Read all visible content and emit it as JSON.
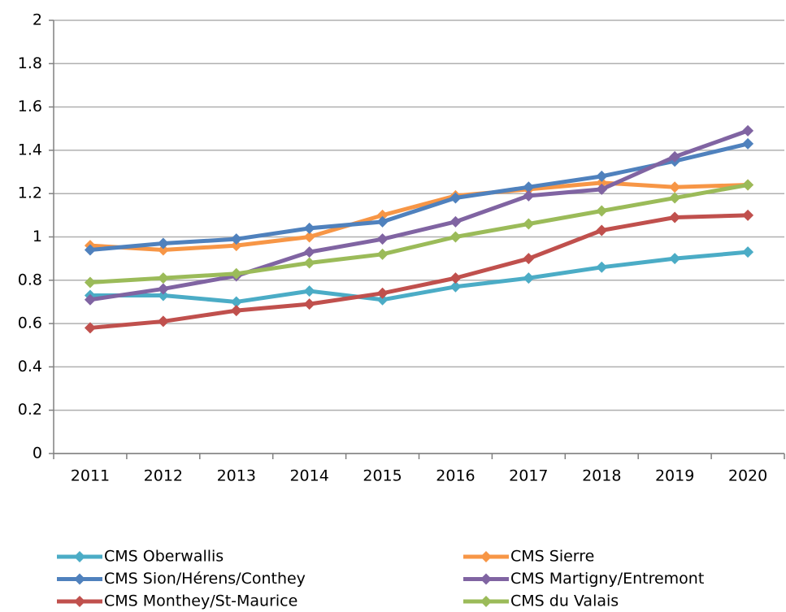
{
  "chart_data": {
    "type": "line",
    "categories": [
      "2011",
      "2012",
      "2013",
      "2014",
      "2015",
      "2016",
      "2017",
      "2018",
      "2019",
      "2020"
    ],
    "series": [
      {
        "name": "CMS Oberwallis",
        "color": "#4bacc6",
        "values": [
          0.73,
          0.73,
          0.7,
          0.75,
          0.71,
          0.77,
          0.81,
          0.86,
          0.9,
          0.93
        ]
      },
      {
        "name": "CMS Sierre",
        "color": "#f79646",
        "values": [
          0.96,
          0.94,
          0.96,
          1.0,
          1.1,
          1.19,
          1.22,
          1.25,
          1.23,
          1.24
        ]
      },
      {
        "name": "CMS Sion/Hérens/Conthey",
        "color": "#4f81bd",
        "values": [
          0.94,
          0.97,
          0.99,
          1.04,
          1.07,
          1.18,
          1.23,
          1.28,
          1.35,
          1.43
        ]
      },
      {
        "name": "CMS Martigny/Entremont",
        "color": "#8064a2",
        "values": [
          0.71,
          0.76,
          0.82,
          0.93,
          0.99,
          1.07,
          1.19,
          1.22,
          1.37,
          1.49
        ]
      },
      {
        "name": "CMS Monthey/St-Maurice",
        "color": "#c0504d",
        "values": [
          0.58,
          0.61,
          0.66,
          0.69,
          0.74,
          0.81,
          0.9,
          1.03,
          1.09,
          1.1
        ]
      },
      {
        "name": "CMS du Valais",
        "color": "#9bbb59",
        "values": [
          0.79,
          0.81,
          0.83,
          0.88,
          0.92,
          1.0,
          1.06,
          1.12,
          1.18,
          1.24
        ]
      }
    ],
    "ylim": [
      0,
      2
    ],
    "yticks": [
      0,
      0.2,
      0.4,
      0.6,
      0.8,
      1,
      1.2,
      1.4,
      1.6,
      1.8,
      2
    ],
    "grid": true
  }
}
